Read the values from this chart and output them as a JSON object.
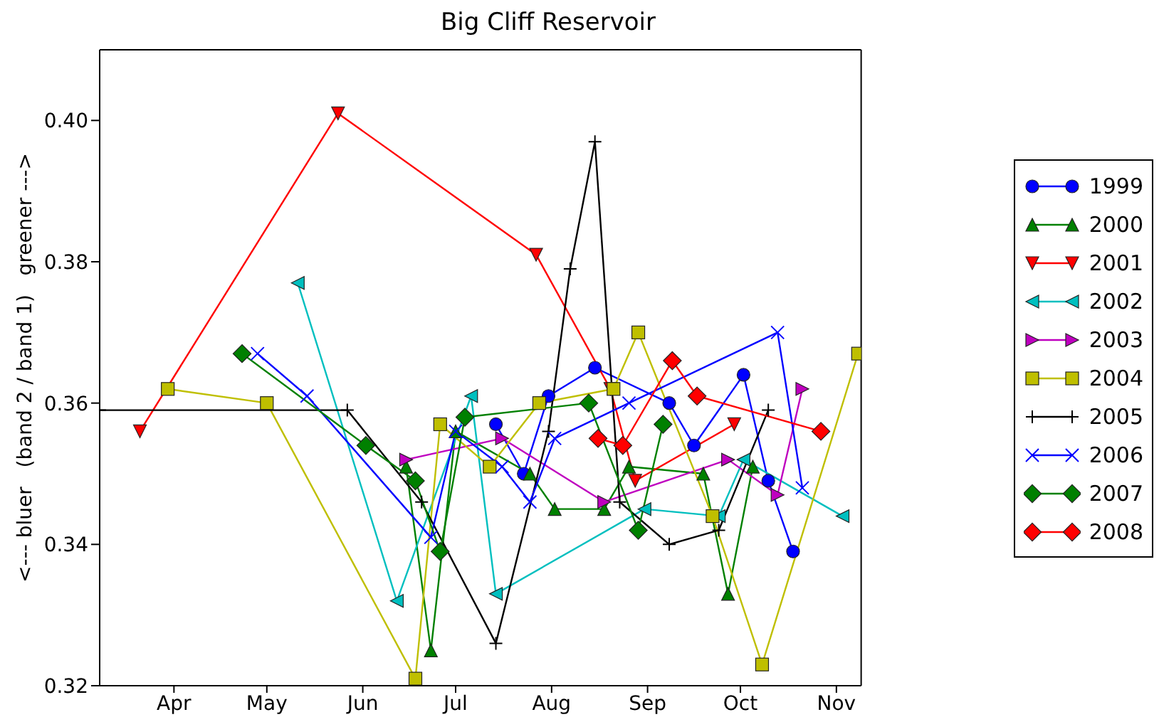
{
  "chart_data": {
    "type": "line",
    "title": "Big Cliff Reservoir",
    "ylabel": "<--- bluer   (band 2 / band 1)   greener --->",
    "xlim": [
      "--03-08",
      "--11-09"
    ],
    "xticks": [
      {
        "value": "--04-01",
        "label": "Apr"
      },
      {
        "value": "--05-01",
        "label": "May"
      },
      {
        "value": "--06-01",
        "label": "Jun"
      },
      {
        "value": "--07-01",
        "label": "Jul"
      },
      {
        "value": "--08-01",
        "label": "Aug"
      },
      {
        "value": "--09-01",
        "label": "Sep"
      },
      {
        "value": "--10-01",
        "label": "Oct"
      },
      {
        "value": "--11-01",
        "label": "Nov"
      }
    ],
    "ylim": [
      0.32,
      0.41
    ],
    "yticks": [
      0.32,
      0.34,
      0.36,
      0.38,
      {
        "value": 0.4,
        "label": "0.40"
      }
    ],
    "grid": false,
    "legend": "right",
    "line_style": "solid",
    "series": [
      {
        "name": "1999",
        "color": "#0000ff",
        "marker": "circle",
        "x": [
          "--07-14",
          "--07-23",
          "--07-31",
          "--08-15",
          "--09-08",
          "--09-16",
          "--10-02",
          "--10-10",
          "--10-18"
        ],
        "values": [
          0.357,
          0.35,
          0.361,
          0.365,
          0.36,
          0.354,
          0.364,
          0.349,
          0.339
        ]
      },
      {
        "name": "2000",
        "color": "#008000",
        "marker": "triangle",
        "x": [
          "--06-15",
          "--06-23",
          "--07-01",
          "--07-25",
          "--08-02",
          "--08-18",
          "--08-26",
          "--09-19",
          "--09-27",
          "--10-05"
        ],
        "values": [
          0.351,
          0.325,
          0.356,
          0.35,
          0.345,
          0.345,
          0.351,
          0.35,
          0.333,
          0.351
        ]
      },
      {
        "name": "2001",
        "color": "#ff0000",
        "marker": "triangle-down",
        "x": [
          "--03-21",
          "--05-24",
          "--07-27",
          "--08-20",
          "--08-28",
          "--09-29"
        ],
        "values": [
          0.356,
          0.401,
          0.381,
          0.362,
          0.349,
          0.357
        ]
      },
      {
        "name": "2002",
        "color": "#00bfbf",
        "marker": "triangle-left",
        "x": [
          "--05-11",
          "--06-12",
          "--07-06",
          "--07-14",
          "--08-31",
          "--09-24",
          "--10-02",
          "--11-03"
        ],
        "values": [
          0.377,
          0.332,
          0.361,
          0.333,
          0.345,
          0.344,
          0.352,
          0.344
        ]
      },
      {
        "name": "2003",
        "color": "#bf00bf",
        "marker": "triangle-right",
        "x": [
          "--06-15",
          "--07-16",
          "--08-18",
          "--09-27",
          "--10-13",
          "--10-21"
        ],
        "values": [
          0.352,
          0.355,
          0.346,
          0.352,
          0.347,
          0.362
        ]
      },
      {
        "name": "2004",
        "color": "#bfbf00",
        "marker": "square",
        "x": [
          "--03-30",
          "--05-01",
          "--06-18",
          "--06-26",
          "--07-12",
          "--07-28",
          "--08-21",
          "--08-29",
          "--09-22",
          "--10-08",
          "--11-08"
        ],
        "values": [
          0.362,
          0.36,
          0.321,
          0.357,
          0.351,
          0.36,
          0.362,
          0.37,
          0.344,
          0.323,
          0.367
        ]
      },
      {
        "name": "2005",
        "color": "#000000",
        "marker": "plus",
        "x": [
          "--03-08",
          "--05-27",
          "--06-20",
          "--07-14",
          "--07-31",
          "--08-07",
          "--08-15",
          "--08-23",
          "--09-08",
          "--09-24",
          "--10-10"
        ],
        "values": [
          0.359,
          0.359,
          0.346,
          0.326,
          0.356,
          0.379,
          0.397,
          0.346,
          0.34,
          0.342,
          0.359
        ]
      },
      {
        "name": "2006",
        "color": "#0000ff",
        "marker": "cross",
        "x": [
          "--04-28",
          "--05-14",
          "--06-23",
          "--07-01",
          "--07-16",
          "--07-25",
          "--08-02",
          "--08-26",
          "--10-13",
          "--10-21"
        ],
        "values": [
          0.367,
          0.361,
          0.341,
          0.356,
          0.351,
          0.346,
          0.355,
          0.36,
          0.37,
          0.348
        ]
      },
      {
        "name": "2007",
        "color": "#008000",
        "marker": "diamond",
        "x": [
          "--04-23",
          "--06-02",
          "--06-18",
          "--06-26",
          "--07-04",
          "--08-13",
          "--08-29",
          "--09-06"
        ],
        "values": [
          0.367,
          0.354,
          0.349,
          0.339,
          0.358,
          0.36,
          0.342,
          0.357
        ]
      },
      {
        "name": "2008",
        "color": "#ff0000",
        "marker": "diamond",
        "x": [
          "--08-16",
          "--08-24",
          "--09-09",
          "--09-17",
          "--10-27"
        ],
        "values": [
          0.355,
          0.354,
          0.366,
          0.361,
          0.356
        ]
      }
    ]
  }
}
